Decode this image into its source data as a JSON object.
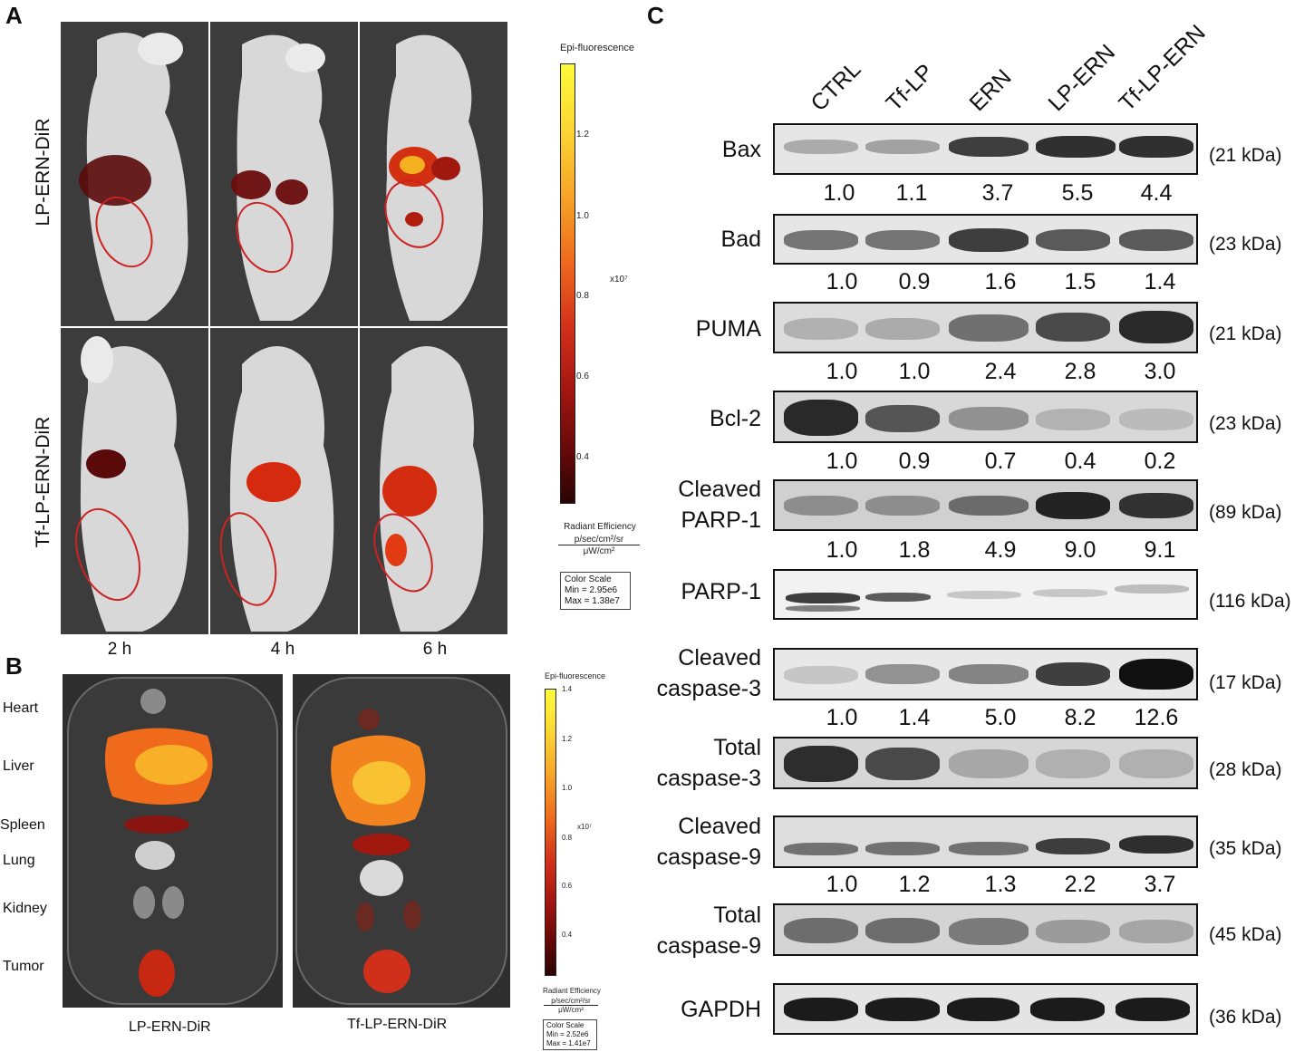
{
  "panels": {
    "a": "A",
    "b": "B",
    "c": "C"
  },
  "panel_a": {
    "rows": [
      "LP-ERN-DiR",
      "Tf-LP-ERN-DiR"
    ],
    "times": [
      "2 h",
      "4 h",
      "6 h"
    ],
    "scale": {
      "title": "Epi-fluorescence",
      "ticks": [
        "1.2",
        "1.0",
        "0.8",
        "0.6",
        "0.4"
      ],
      "exponent": "x10⁷",
      "units_label": "Radiant Efficiency",
      "units_num": "p/sec/cm²/sr",
      "units_den": "μW/cm²",
      "color_scale": "Color Scale",
      "min": "Min = 2.95e6",
      "max": "Max = 1.38e7"
    }
  },
  "panel_b": {
    "organs": [
      "Heart",
      "Liver",
      "Spleen",
      "Lung",
      "Kidney",
      "Tumor"
    ],
    "groups": [
      "LP-ERN-DiR",
      "Tf-LP-ERN-DiR"
    ],
    "scale": {
      "title": "Epi-fluorescence",
      "ticks": [
        "1.4",
        "1.2",
        "1.0",
        "0.8",
        "0.6",
        "0.4"
      ],
      "exponent": "x10⁷",
      "units_label": "Radiant Efficiency",
      "units_num": "p/sec/cm²/sr",
      "units_den": "μW/cm²",
      "color_scale": "Color Scale",
      "min": "Min = 2.52e6",
      "max": "Max = 1.41e7"
    }
  },
  "panel_c": {
    "lanes": [
      "CTRL",
      "Tf-LP",
      "ERN",
      "LP-ERN",
      "Tf-LP-ERN"
    ],
    "blots": [
      {
        "line1": "Bax",
        "line2": "",
        "kda": "(21 kDa)",
        "values": [
          "1.0",
          "1.1",
          "3.7",
          "5.5",
          "4.4"
        ]
      },
      {
        "line1": "Bad",
        "line2": "",
        "kda": "(23 kDa)",
        "values": [
          "1.0",
          "0.9",
          "1.6",
          "1.5",
          "1.4"
        ]
      },
      {
        "line1": "PUMA",
        "line2": "",
        "kda": "(21 kDa)",
        "values": [
          "1.0",
          "1.0",
          "2.4",
          "2.8",
          "3.0"
        ]
      },
      {
        "line1": "Bcl-2",
        "line2": "",
        "kda": "(23 kDa)",
        "values": [
          "1.0",
          "0.9",
          "0.7",
          "0.4",
          "0.2"
        ]
      },
      {
        "line1": "Cleaved",
        "line2": "PARP-1",
        "kda": "(89 kDa)",
        "values": [
          "1.0",
          "1.8",
          "4.9",
          "9.0",
          "9.1"
        ]
      },
      {
        "line1": "PARP-1",
        "line2": "",
        "kda": "(116 kDa)",
        "values": []
      },
      {
        "line1": "Cleaved",
        "line2": "caspase-3",
        "kda": "(17 kDa)",
        "values": [
          "1.0",
          "1.4",
          "5.0",
          "8.2",
          "12.6"
        ]
      },
      {
        "line1": "Total",
        "line2": "caspase-3",
        "kda": "(28 kDa)",
        "values": []
      },
      {
        "line1": "Cleaved",
        "line2": "caspase-9",
        "kda": "(35 kDa)",
        "values": [
          "1.0",
          "1.2",
          "1.3",
          "2.2",
          "3.7"
        ]
      },
      {
        "line1": "Total",
        "line2": "caspase-9",
        "kda": "(45 kDa)",
        "values": []
      },
      {
        "line1": "GAPDH",
        "line2": "",
        "kda": "(36 kDa)",
        "values": []
      }
    ]
  }
}
